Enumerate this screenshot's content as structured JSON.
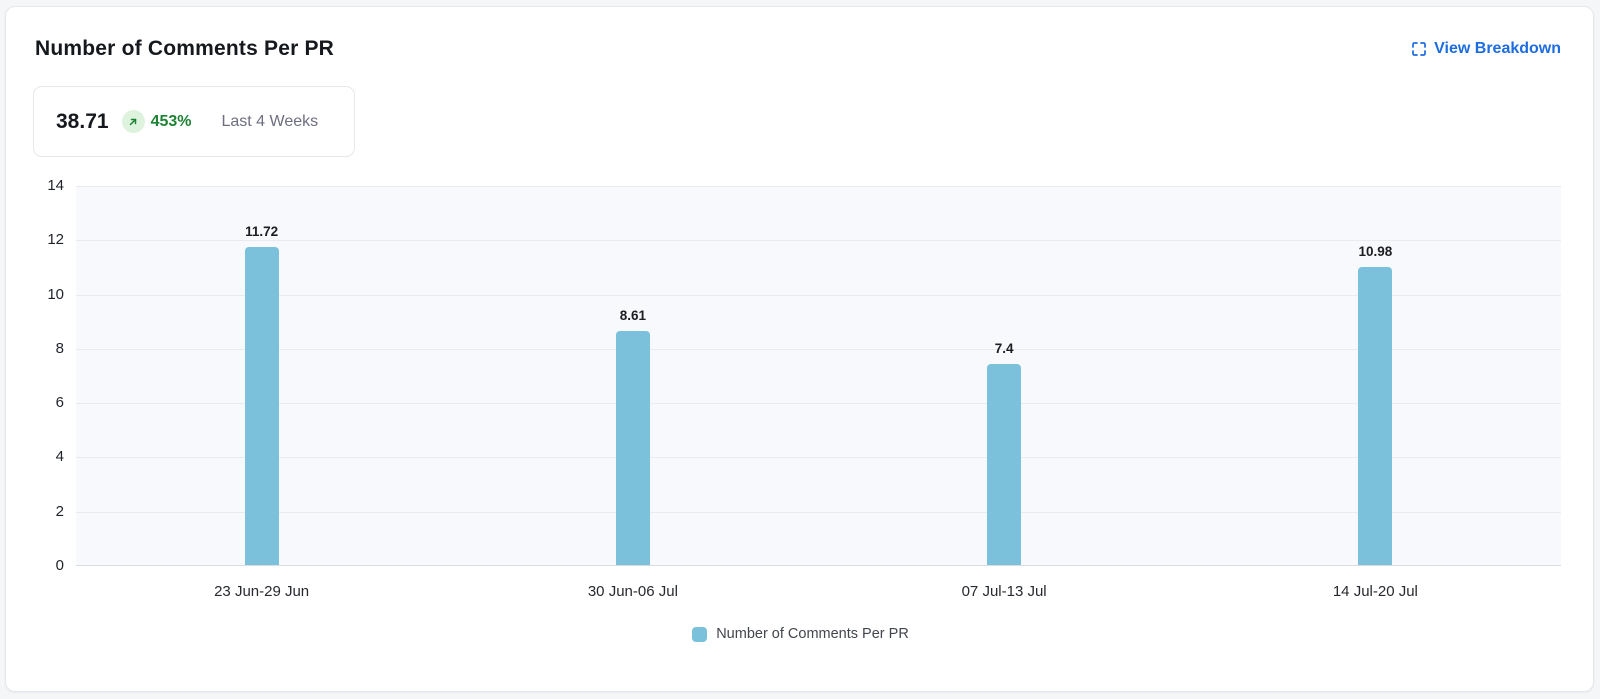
{
  "card": {
    "title": "Number of Comments Per PR",
    "action": {
      "label": "View Breakdown",
      "icon": "expand-icon"
    },
    "stat": {
      "value": "38.71",
      "trend_icon": "arrow-up-right-icon",
      "change": "453%",
      "period": "Last 4 Weeks"
    }
  },
  "colors": {
    "bar": "#7cc1dc",
    "accent_blue": "#1d6ce0",
    "trend_green": "#1e8234",
    "trend_green_bg": "#ddf3dd",
    "plot_background": "#f8f9fc"
  },
  "chart_data": {
    "type": "bar",
    "categories": [
      "23 Jun-29 Jun",
      "30 Jun-06 Jul",
      "07 Jul-13 Jul",
      "14 Jul-20 Jul"
    ],
    "values": [
      11.72,
      8.61,
      7.4,
      10.98
    ],
    "value_labels": [
      "11.72",
      "8.61",
      "7.4",
      "10.98"
    ],
    "title": "Number of Comments Per PR",
    "xlabel": "",
    "ylabel": "",
    "ylim": [
      0,
      14
    ],
    "yticks": [
      0,
      2,
      4,
      6,
      8,
      10,
      12,
      14
    ],
    "grid": true,
    "legend": [
      "Number of Comments Per PR"
    ],
    "legend_position": "bottom",
    "bar_color": "#7cc1dc"
  }
}
